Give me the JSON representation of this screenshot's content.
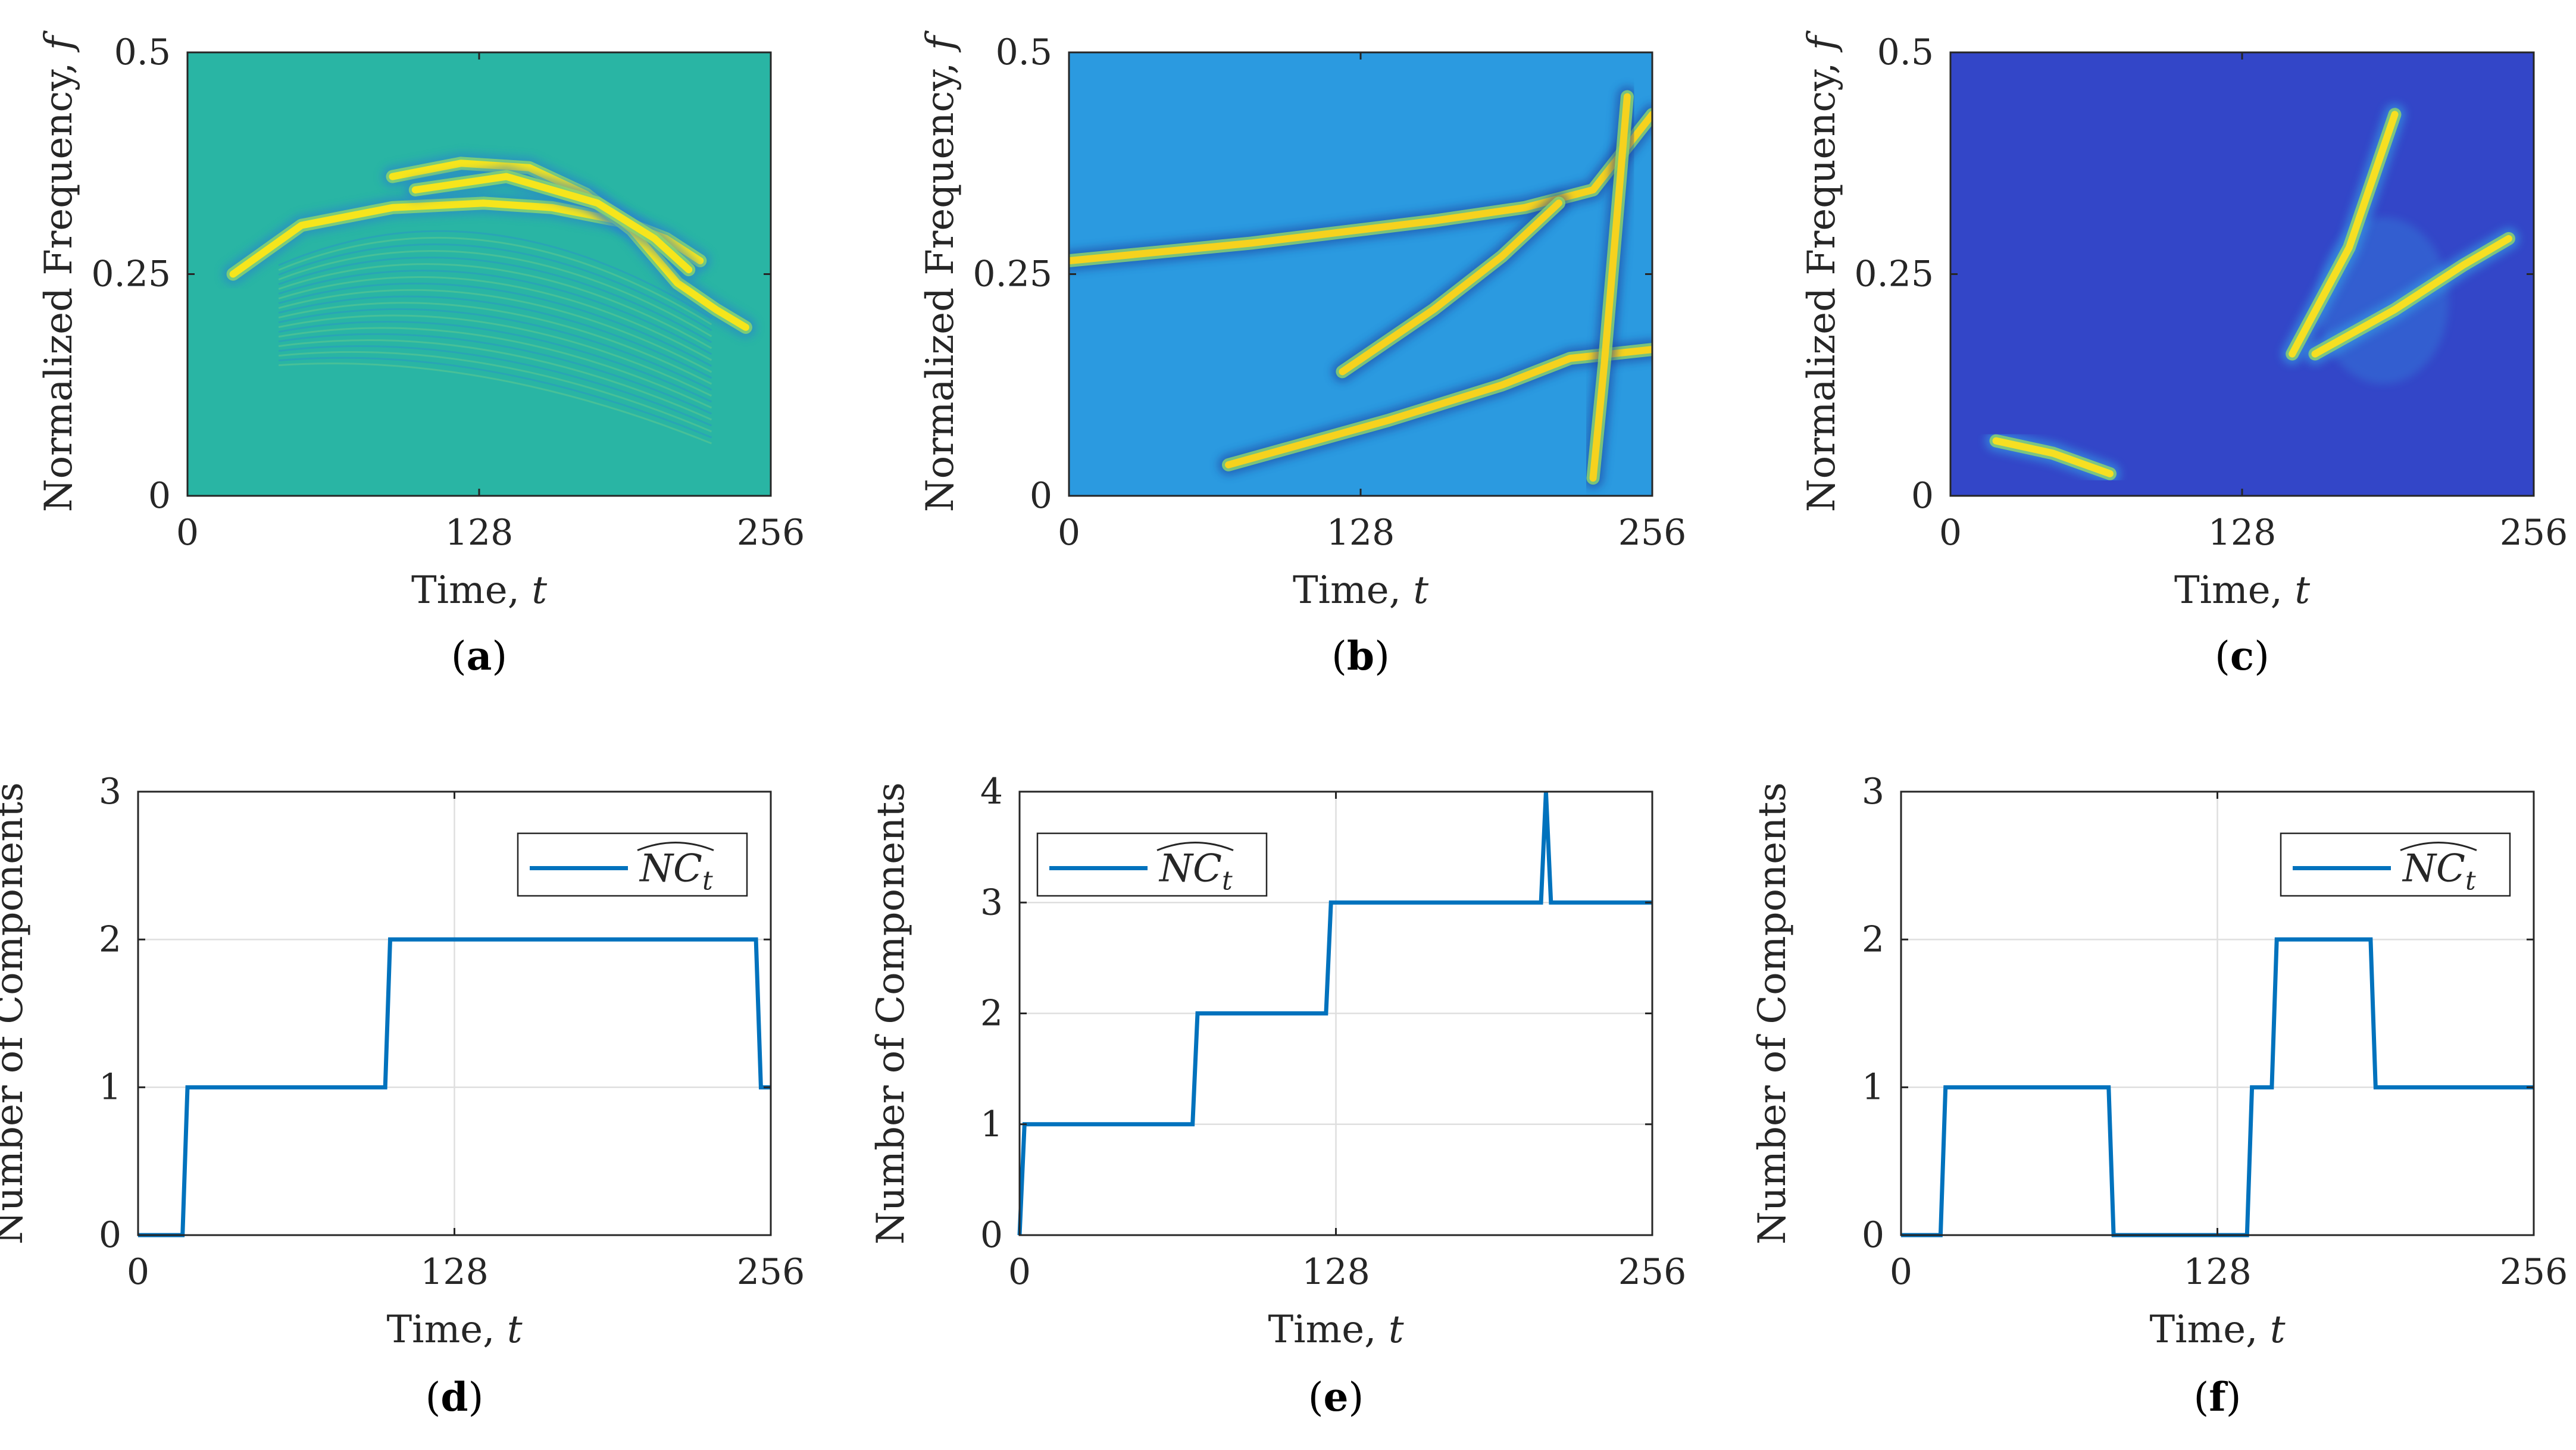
{
  "chart_data": [
    {
      "panel": "(a)",
      "type": "heatmap",
      "xlabel": "Time, t",
      "ylabel": "Normalized Frequency, f",
      "xlim": [
        0,
        256
      ],
      "ylim": [
        0,
        0.5
      ],
      "xticks": [
        0,
        128,
        256
      ],
      "xtick_labels": [
        "0",
        "128",
        "256"
      ],
      "yticks": [
        0,
        0.25,
        0.5
      ],
      "ytick_labels": [
        "0",
        "0.25",
        "0.5"
      ],
      "colors": {
        "background": "#29b5a4",
        "ridge": "#f6e51c",
        "dark": "#2c7fd0"
      },
      "ridges": [
        {
          "points": [
            [
              20,
              0.25
            ],
            [
              50,
              0.305
            ],
            [
              90,
              0.325
            ],
            [
              130,
              0.33
            ],
            [
              160,
              0.325
            ],
            [
              190,
              0.31
            ],
            [
              210,
              0.29
            ],
            [
              225,
              0.265
            ]
          ]
        },
        {
          "points": [
            [
              90,
              0.36
            ],
            [
              120,
              0.375
            ],
            [
              150,
              0.37
            ],
            [
              175,
              0.34
            ],
            [
              195,
              0.3
            ],
            [
              215,
              0.24
            ],
            [
              232,
              0.21
            ],
            [
              245,
              0.19
            ]
          ]
        },
        {
          "points": [
            [
              100,
              0.345
            ],
            [
              140,
              0.36
            ],
            [
              180,
              0.33
            ],
            [
              205,
              0.29
            ],
            [
              220,
              0.255
            ]
          ]
        }
      ]
    },
    {
      "panel": "(b)",
      "type": "heatmap",
      "xlabel": "Time, t",
      "ylabel": "Normalized Frequency, f",
      "xlim": [
        0,
        256
      ],
      "ylim": [
        0,
        0.5
      ],
      "xticks": [
        0,
        128,
        256
      ],
      "xtick_labels": [
        "0",
        "128",
        "256"
      ],
      "yticks": [
        0,
        0.25,
        0.5
      ],
      "ytick_labels": [
        "0",
        "0.25",
        "0.5"
      ],
      "colors": {
        "background": "#2b9ae0",
        "ridge": "#f6d21e",
        "dark": "#1c3f9f"
      },
      "ridges": [
        {
          "points": [
            [
              0,
              0.265
            ],
            [
              80,
              0.285
            ],
            [
              160,
              0.31
            ],
            [
              200,
              0.325
            ],
            [
              230,
              0.345
            ],
            [
              256,
              0.43
            ]
          ]
        },
        {
          "points": [
            [
              70,
              0.035
            ],
            [
              140,
              0.085
            ],
            [
              190,
              0.125
            ],
            [
              220,
              0.155
            ],
            [
              256,
              0.165
            ]
          ]
        },
        {
          "points": [
            [
              120,
              0.14
            ],
            [
              160,
              0.21
            ],
            [
              190,
              0.27
            ],
            [
              215,
              0.33
            ]
          ]
        },
        {
          "points": [
            [
              230,
              0.02
            ],
            [
              235,
              0.15
            ],
            [
              240,
              0.3
            ],
            [
              245,
              0.45
            ]
          ]
        }
      ]
    },
    {
      "panel": "(c)",
      "type": "heatmap",
      "xlabel": "Time, t",
      "ylabel": "Normalized Frequency, f",
      "xlim": [
        0,
        256
      ],
      "ylim": [
        0,
        0.5
      ],
      "xticks": [
        0,
        128,
        256
      ],
      "xtick_labels": [
        "0",
        "128",
        "256"
      ],
      "yticks": [
        0,
        0.25,
        0.5
      ],
      "ytick_labels": [
        "0",
        "0.25",
        "0.5"
      ],
      "colors": {
        "background": "#3346c8",
        "ridge": "#f6df22",
        "mid": "#36a8e8"
      },
      "ridges": [
        {
          "points": [
            [
              20,
              0.062
            ],
            [
              45,
              0.048
            ],
            [
              70,
              0.025
            ]
          ]
        },
        {
          "points": [
            [
              160,
              0.16
            ],
            [
              195,
              0.21
            ],
            [
              225,
              0.26
            ],
            [
              245,
              0.29
            ]
          ]
        },
        {
          "points": [
            [
              150,
              0.16
            ],
            [
              175,
              0.28
            ],
            [
              195,
              0.43
            ]
          ]
        }
      ]
    },
    {
      "panel": "(d)",
      "type": "line",
      "xlabel": "Time, t",
      "ylabel": "Number of Components",
      "xlim": [
        0,
        256
      ],
      "ylim": [
        0,
        3
      ],
      "xticks": [
        0,
        128,
        256
      ],
      "xtick_labels": [
        "0",
        "128",
        "256"
      ],
      "yticks": [
        0,
        1,
        2,
        3
      ],
      "ytick_labels": [
        "0",
        "1",
        "2",
        "3"
      ],
      "grid": true,
      "legend_position": "top-right",
      "series": [
        {
          "name": "NC_t (widehat)",
          "color": "#0072bd",
          "x": [
            0,
            18,
            20,
            100,
            102,
            250,
            252,
            256
          ],
          "y": [
            0,
            0,
            1,
            1,
            2,
            2,
            1,
            1
          ]
        }
      ]
    },
    {
      "panel": "(e)",
      "type": "line",
      "xlabel": "Time, t",
      "ylabel": "Number of Components",
      "xlim": [
        0,
        256
      ],
      "ylim": [
        0,
        4
      ],
      "xticks": [
        0,
        128,
        256
      ],
      "xtick_labels": [
        "0",
        "128",
        "256"
      ],
      "yticks": [
        0,
        1,
        2,
        3,
        4
      ],
      "ytick_labels": [
        "0",
        "1",
        "2",
        "3",
        "4"
      ],
      "grid": true,
      "legend_position": "top-left",
      "series": [
        {
          "name": "NC_t (widehat)",
          "color": "#0072bd",
          "x": [
            0,
            2,
            70,
            72,
            124,
            126,
            211,
            213,
            215,
            256
          ],
          "y": [
            0,
            1,
            1,
            2,
            2,
            3,
            3,
            4,
            3,
            3
          ]
        }
      ]
    },
    {
      "panel": "(f)",
      "type": "line",
      "xlabel": "Time, t",
      "ylabel": "Number of Components",
      "xlim": [
        0,
        256
      ],
      "ylim": [
        0,
        3
      ],
      "xticks": [
        0,
        128,
        256
      ],
      "xtick_labels": [
        "0",
        "128",
        "256"
      ],
      "yticks": [
        0,
        1,
        2,
        3
      ],
      "ytick_labels": [
        "0",
        "1",
        "2",
        "3"
      ],
      "grid": true,
      "legend_position": "top-right",
      "series": [
        {
          "name": "NC_t (widehat)",
          "color": "#0072bd",
          "x": [
            0,
            16,
            18,
            84,
            86,
            140,
            142,
            150,
            152,
            190,
            192,
            256
          ],
          "y": [
            0,
            0,
            1,
            1,
            0,
            0,
            1,
            1,
            2,
            2,
            1,
            1
          ]
        }
      ]
    }
  ],
  "panel_labels": [
    "(a)",
    "(b)",
    "(c)",
    "(d)",
    "(e)",
    "(f)"
  ],
  "axis_text": {
    "time_label": "Time, ",
    "time_var": "t",
    "freq_label": "Normalized Frequency, ",
    "freq_var": "f",
    "components_label": "Number of Components",
    "legend_text": "NC",
    "legend_sub": "t"
  }
}
